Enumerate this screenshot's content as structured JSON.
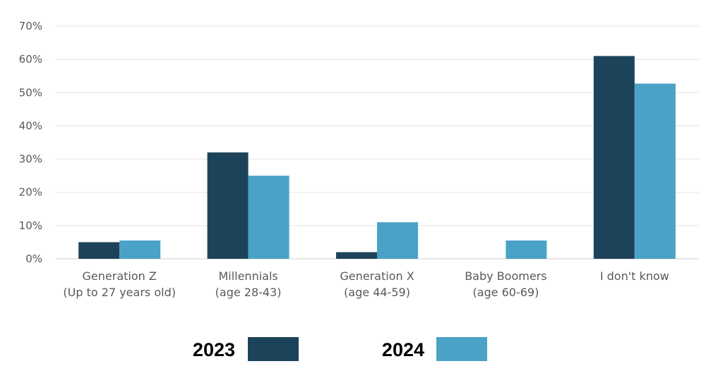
{
  "chart_data": {
    "type": "bar",
    "categories": [
      [
        "Generation Z",
        "(Up to 27 years old)"
      ],
      [
        "Millennials",
        "(age 28-43)"
      ],
      [
        "Generation X",
        "(age 44-59)"
      ],
      [
        "Baby Boomers",
        "(age 60-69)"
      ],
      [
        "I don't know"
      ]
    ],
    "series": [
      {
        "name": "2023",
        "color": "#1c435a",
        "values": [
          5,
          32,
          2,
          0,
          61
        ]
      },
      {
        "name": "2024",
        "color": "#4aa2c6",
        "values": [
          5.5,
          25,
          11,
          5.5,
          52.7
        ]
      }
    ],
    "yticks": [
      "0%",
      "10%",
      "20%",
      "30%",
      "40%",
      "50%",
      "60%",
      "70%"
    ],
    "ylim": [
      0,
      70
    ],
    "grid": true,
    "legend_position": "bottom",
    "title": "",
    "xlabel": "",
    "ylabel": ""
  }
}
